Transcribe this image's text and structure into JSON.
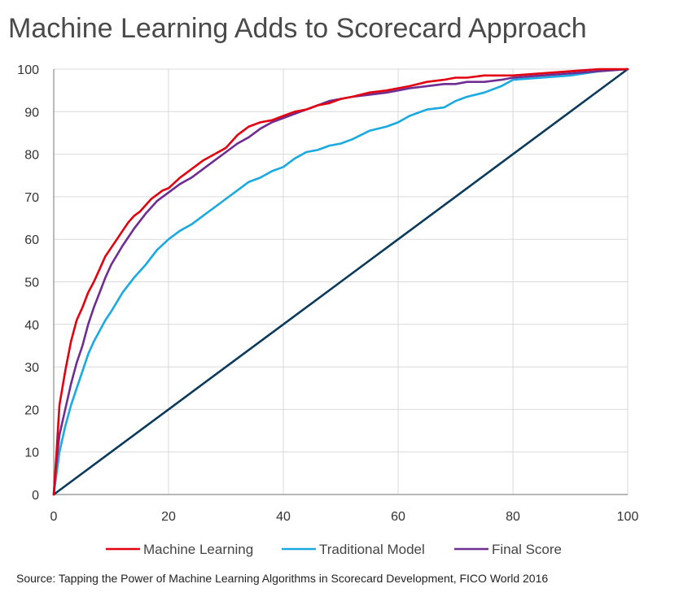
{
  "chart_data": {
    "type": "line",
    "title": "Machine Learning Adds to Scorecard Approach",
    "source": "Source: Tapping the Power of Machine Learning Algorithms in Scorecard Development, FICO World 2016",
    "xlim": [
      0,
      100
    ],
    "ylim": [
      0,
      100
    ],
    "xticks": [
      "0",
      "20",
      "40",
      "60",
      "80",
      "100"
    ],
    "yticks": [
      "0",
      "10",
      "20",
      "30",
      "40",
      "50",
      "60",
      "70",
      "80",
      "90",
      "100"
    ],
    "grid": true,
    "legend_position": "bottom",
    "series": [
      {
        "name": "Machine Learning",
        "color": "#e3000f",
        "x": [
          0,
          0.5,
          1,
          2,
          3,
          4,
          5,
          6,
          7,
          8,
          9,
          10,
          11,
          12,
          13,
          14,
          15,
          16,
          17,
          18,
          19,
          20,
          22,
          24,
          26,
          28,
          30,
          32,
          34,
          36,
          38,
          40,
          42,
          44,
          46,
          48,
          50,
          52,
          55,
          58,
          60,
          62,
          65,
          68,
          70,
          72,
          75,
          78,
          80,
          85,
          90,
          95,
          100
        ],
        "y": [
          0,
          10,
          21,
          29,
          36,
          41,
          44,
          47.5,
          50,
          53,
          56,
          58,
          60,
          62,
          64,
          65.5,
          66.5,
          68,
          69.5,
          70.5,
          71.5,
          72,
          74.5,
          76.5,
          78.5,
          80,
          81.5,
          84.5,
          86.5,
          87.5,
          88,
          89,
          90,
          90.5,
          91.5,
          92,
          93,
          93.5,
          94.5,
          95,
          95.5,
          96,
          97,
          97.5,
          98,
          98,
          98.5,
          98.5,
          98.5,
          99,
          99.5,
          100,
          100
        ]
      },
      {
        "name": "Traditional Model",
        "color": "#1aa9e0",
        "x": [
          0,
          1,
          2,
          3,
          4,
          5,
          6,
          7,
          8,
          9,
          10,
          12,
          14,
          16,
          18,
          20,
          22,
          24,
          26,
          28,
          30,
          32,
          34,
          36,
          38,
          40,
          42,
          44,
          46,
          48,
          50,
          52,
          55,
          58,
          60,
          62,
          65,
          68,
          70,
          72,
          75,
          78,
          80,
          85,
          90,
          95,
          100
        ],
        "y": [
          0,
          10,
          16,
          21,
          25,
          29,
          33,
          36,
          38.5,
          41,
          43,
          47.5,
          51,
          54,
          57.5,
          60,
          62,
          63.5,
          65.5,
          67.5,
          69.5,
          71.5,
          73.5,
          74.5,
          76,
          77,
          79,
          80.5,
          81,
          82,
          82.5,
          83.5,
          85.5,
          86.5,
          87.5,
          89,
          90.5,
          91,
          92.5,
          93.5,
          94.5,
          96,
          97.5,
          98,
          98.5,
          99.5,
          100
        ]
      },
      {
        "name": "Final Score",
        "color": "#6f2c91",
        "x": [
          0,
          0.5,
          1,
          2,
          3,
          4,
          5,
          6,
          7,
          8,
          9,
          10,
          12,
          14,
          16,
          18,
          20,
          22,
          24,
          26,
          28,
          30,
          32,
          34,
          36,
          38,
          40,
          42,
          44,
          46,
          48,
          50,
          52,
          55,
          58,
          60,
          62,
          65,
          68,
          70,
          72,
          75,
          78,
          80,
          85,
          90,
          95,
          100
        ],
        "y": [
          0,
          8,
          14,
          20,
          26,
          31,
          35,
          40,
          44,
          47.5,
          51,
          54,
          58.5,
          62.5,
          66,
          69,
          71,
          73,
          74.5,
          76.5,
          78.5,
          80.5,
          82.5,
          84,
          86,
          87.5,
          88.5,
          89.5,
          90.5,
          91.5,
          92.5,
          93,
          93.5,
          94,
          94.5,
          95,
          95.5,
          96,
          96.5,
          96.5,
          97,
          97,
          97.5,
          98,
          98.5,
          99,
          99.5,
          100
        ]
      },
      {
        "name": "",
        "color": "#0b3a5b",
        "x": [
          0,
          10,
          20,
          30,
          40,
          50,
          60,
          70,
          80,
          90,
          100
        ],
        "y": [
          0,
          10,
          20,
          30,
          40,
          50,
          60,
          70,
          80,
          90,
          100
        ]
      }
    ]
  }
}
